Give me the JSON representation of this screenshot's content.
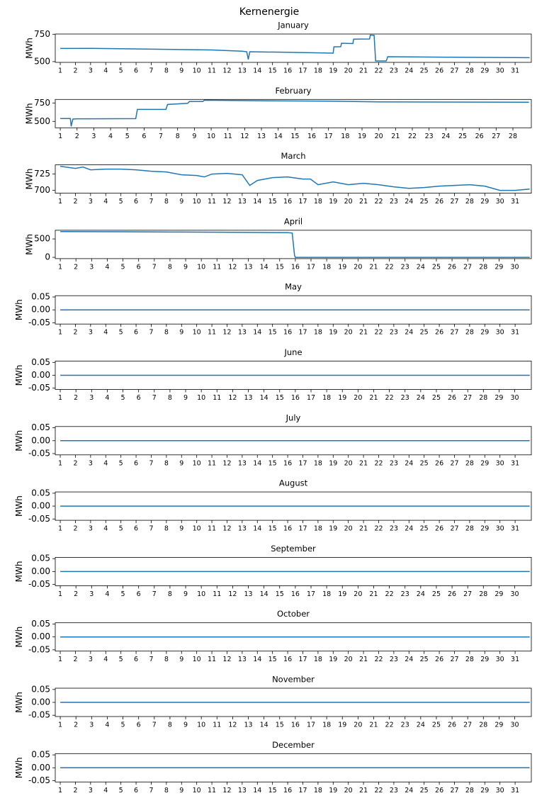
{
  "title": "Kernenergie",
  "chart_data": [
    {
      "type": "line",
      "title": "January",
      "ylabel": "MWh",
      "xlim": [
        0.67,
        32.07
      ],
      "ylim": [
        493,
        752
      ],
      "yticks": [
        500,
        750
      ],
      "xticks": [
        1,
        2,
        3,
        4,
        5,
        6,
        7,
        8,
        9,
        10,
        11,
        12,
        13,
        14,
        15,
        16,
        17,
        18,
        19,
        20,
        21,
        22,
        23,
        24,
        25,
        26,
        27,
        28,
        29,
        30,
        31
      ],
      "series": [
        {
          "color": "#1f77b4",
          "x": [
            1,
            3,
            5,
            8,
            11,
            13,
            13.3,
            13.4,
            13.5,
            16,
            19,
            19.05,
            19.5,
            19.55,
            20.3,
            20.35,
            21.4,
            21.45,
            21.7,
            21.8,
            22.5,
            22.6,
            27,
            31.96
          ],
          "values": [
            620,
            621,
            618,
            612,
            606,
            595,
            590,
            520,
            590,
            585,
            577,
            635,
            636,
            668,
            665,
            705,
            707,
            742,
            740,
            506,
            506,
            545,
            540,
            536
          ]
        }
      ]
    },
    {
      "type": "line",
      "title": "February",
      "ylabel": "MWh",
      "xlim": [
        0.7,
        29.1
      ],
      "ylim": [
        413,
        798
      ],
      "yticks": [
        500,
        750
      ],
      "xticks": [
        1,
        2,
        3,
        4,
        5,
        6,
        7,
        8,
        9,
        10,
        11,
        12,
        13,
        14,
        15,
        16,
        17,
        18,
        19,
        20,
        21,
        22,
        23,
        24,
        25,
        26,
        27,
        28
      ],
      "series": [
        {
          "color": "#1f77b4",
          "x": [
            1,
            1.6,
            1.65,
            1.75,
            2,
            5.5,
            5.6,
            7.3,
            7.4,
            8.6,
            8.7,
            9.5,
            9.6,
            13,
            17,
            20,
            24,
            28.96
          ],
          "values": [
            538,
            538,
            432,
            532,
            535,
            537,
            663,
            663,
            730,
            745,
            769,
            769,
            788,
            780,
            775,
            765,
            763,
            760
          ]
        }
      ]
    },
    {
      "type": "line",
      "title": "March",
      "ylabel": "MWh",
      "xlim": [
        0.67,
        32.07
      ],
      "ylim": [
        695.7,
        739.1
      ],
      "yticks": [
        700,
        725
      ],
      "xticks": [
        1,
        2,
        3,
        4,
        5,
        6,
        7,
        8,
        9,
        10,
        11,
        12,
        13,
        14,
        15,
        16,
        17,
        18,
        19,
        20,
        21,
        22,
        23,
        24,
        25,
        26,
        27,
        28,
        29,
        30,
        31
      ],
      "series": [
        {
          "color": "#1f77b4",
          "x": [
            1,
            2,
            2.5,
            3,
            4,
            5,
            6,
            7,
            8,
            9,
            10,
            10.5,
            11,
            12,
            13,
            13.5,
            14,
            15,
            16,
            17,
            17.5,
            18,
            19,
            20,
            21,
            22,
            23,
            24,
            25,
            26,
            27,
            28,
            29,
            30,
            31,
            31.96
          ],
          "values": [
            736.9,
            733.7,
            735.8,
            731.5,
            732.6,
            732.6,
            731.5,
            729.3,
            728.2,
            723.9,
            722.8,
            720.6,
            725.0,
            726.1,
            723.9,
            707.6,
            715.2,
            719.5,
            720.6,
            717.4,
            717.4,
            708.7,
            713.0,
            708.7,
            710.8,
            708.7,
            705.4,
            703.2,
            704.3,
            706.5,
            707.6,
            708.7,
            706.5,
            700.0,
            700.0,
            702.1
          ]
        }
      ]
    },
    {
      "type": "line",
      "title": "April",
      "ylabel": "MWh",
      "xlim": [
        0.68,
        31.06
      ],
      "ylim": [
        -35,
        735
      ],
      "yticks": [
        0,
        500
      ],
      "xticks": [
        1,
        2,
        3,
        4,
        5,
        6,
        7,
        8,
        9,
        10,
        11,
        12,
        13,
        14,
        15,
        16,
        17,
        18,
        19,
        20,
        21,
        22,
        23,
        24,
        25,
        26,
        27,
        28,
        29,
        30
      ],
      "series": [
        {
          "color": "#1f77b4",
          "x": [
            1,
            5,
            8,
            12,
            15.5,
            15.8,
            15.95,
            16,
            30.96
          ],
          "values": [
            700,
            695,
            688,
            680,
            670,
            660,
            50,
            0,
            0
          ]
        }
      ]
    },
    {
      "type": "line",
      "title": "May",
      "ylabel": "MWh",
      "xlim": [
        0.67,
        32.07
      ],
      "ylim": [
        -0.055,
        0.055
      ],
      "yticks": [
        -0.05,
        {
          "value": 0,
          "label": "0.00"
        },
        0.05
      ],
      "xticks": [
        1,
        2,
        3,
        4,
        5,
        6,
        7,
        8,
        9,
        10,
        11,
        12,
        13,
        14,
        15,
        16,
        17,
        18,
        19,
        20,
        21,
        22,
        23,
        24,
        25,
        26,
        27,
        28,
        29,
        30,
        31
      ],
      "series": [
        {
          "color": "#1f77b4",
          "x": [
            1,
            31.96
          ],
          "values": [
            0,
            0
          ]
        }
      ]
    },
    {
      "type": "line",
      "title": "June",
      "ylabel": "MWh",
      "xlim": [
        0.68,
        31.06
      ],
      "ylim": [
        -0.055,
        0.055
      ],
      "yticks": [
        -0.05,
        {
          "value": 0,
          "label": "0.00"
        },
        0.05
      ],
      "xticks": [
        1,
        2,
        3,
        4,
        5,
        6,
        7,
        8,
        9,
        10,
        11,
        12,
        13,
        14,
        15,
        16,
        17,
        18,
        19,
        20,
        21,
        22,
        23,
        24,
        25,
        26,
        27,
        28,
        29,
        30
      ],
      "series": [
        {
          "color": "#1f77b4",
          "x": [
            1,
            30.96
          ],
          "values": [
            0,
            0
          ]
        }
      ]
    },
    {
      "type": "line",
      "title": "July",
      "ylabel": "MWh",
      "xlim": [
        0.67,
        32.07
      ],
      "ylim": [
        -0.055,
        0.055
      ],
      "yticks": [
        -0.05,
        {
          "value": 0,
          "label": "0.00"
        },
        0.05
      ],
      "xticks": [
        1,
        2,
        3,
        4,
        5,
        6,
        7,
        8,
        9,
        10,
        11,
        12,
        13,
        14,
        15,
        16,
        17,
        18,
        19,
        20,
        21,
        22,
        23,
        24,
        25,
        26,
        27,
        28,
        29,
        30,
        31
      ],
      "series": [
        {
          "color": "#1f77b4",
          "x": [
            1,
            31.96
          ],
          "values": [
            0,
            0
          ]
        }
      ]
    },
    {
      "type": "line",
      "title": "August",
      "ylabel": "MWh",
      "xlim": [
        0.67,
        32.07
      ],
      "ylim": [
        -0.055,
        0.055
      ],
      "yticks": [
        -0.05,
        {
          "value": 0,
          "label": "0.00"
        },
        0.05
      ],
      "xticks": [
        1,
        2,
        3,
        4,
        5,
        6,
        7,
        8,
        9,
        10,
        11,
        12,
        13,
        14,
        15,
        16,
        17,
        18,
        19,
        20,
        21,
        22,
        23,
        24,
        25,
        26,
        27,
        28,
        29,
        30,
        31
      ],
      "series": [
        {
          "color": "#1f77b4",
          "x": [
            1,
            31.96
          ],
          "values": [
            0,
            0
          ]
        }
      ]
    },
    {
      "type": "line",
      "title": "September",
      "ylabel": "MWh",
      "xlim": [
        0.68,
        31.06
      ],
      "ylim": [
        -0.055,
        0.055
      ],
      "yticks": [
        -0.05,
        {
          "value": 0,
          "label": "0.00"
        },
        0.05
      ],
      "xticks": [
        1,
        2,
        3,
        4,
        5,
        6,
        7,
        8,
        9,
        10,
        11,
        12,
        13,
        14,
        15,
        16,
        17,
        18,
        19,
        20,
        21,
        22,
        23,
        24,
        25,
        26,
        27,
        28,
        29,
        30
      ],
      "series": [
        {
          "color": "#1f77b4",
          "x": [
            1,
            30.96
          ],
          "values": [
            0,
            0
          ]
        }
      ]
    },
    {
      "type": "line",
      "title": "October",
      "ylabel": "MWh",
      "xlim": [
        0.67,
        32.07
      ],
      "ylim": [
        -0.055,
        0.055
      ],
      "yticks": [
        -0.05,
        {
          "value": 0,
          "label": "0.00"
        },
        0.05
      ],
      "xticks": [
        1,
        2,
        3,
        4,
        5,
        6,
        7,
        8,
        9,
        10,
        11,
        12,
        13,
        14,
        15,
        16,
        17,
        18,
        19,
        20,
        21,
        22,
        23,
        24,
        25,
        26,
        27,
        28,
        29,
        30,
        31
      ],
      "series": [
        {
          "color": "#1f77b4",
          "x": [
            1,
            31.96
          ],
          "values": [
            0,
            0
          ]
        }
      ]
    },
    {
      "type": "line",
      "title": "November",
      "ylabel": "MWh",
      "xlim": [
        0.68,
        31.06
      ],
      "ylim": [
        -0.055,
        0.055
      ],
      "yticks": [
        -0.05,
        {
          "value": 0,
          "label": "0.00"
        },
        0.05
      ],
      "xticks": [
        1,
        2,
        3,
        4,
        5,
        6,
        7,
        8,
        9,
        10,
        11,
        12,
        13,
        14,
        15,
        16,
        17,
        18,
        19,
        20,
        21,
        22,
        23,
        24,
        25,
        26,
        27,
        28,
        29,
        30
      ],
      "series": [
        {
          "color": "#1f77b4",
          "x": [
            1,
            30.96
          ],
          "values": [
            0,
            0
          ]
        }
      ]
    },
    {
      "type": "line",
      "title": "December",
      "ylabel": "MWh",
      "xlim": [
        0.67,
        32.07
      ],
      "ylim": [
        -0.055,
        0.055
      ],
      "yticks": [
        -0.05,
        {
          "value": 0,
          "label": "0.00"
        },
        0.05
      ],
      "xticks": [
        1,
        2,
        3,
        4,
        5,
        6,
        7,
        8,
        9,
        10,
        11,
        12,
        13,
        14,
        15,
        16,
        17,
        18,
        19,
        20,
        21,
        22,
        23,
        24,
        25,
        26,
        27,
        28,
        29,
        30,
        31
      ],
      "series": [
        {
          "color": "#1f77b4",
          "x": [
            1,
            31.96
          ],
          "values": [
            0,
            0
          ]
        }
      ]
    }
  ]
}
